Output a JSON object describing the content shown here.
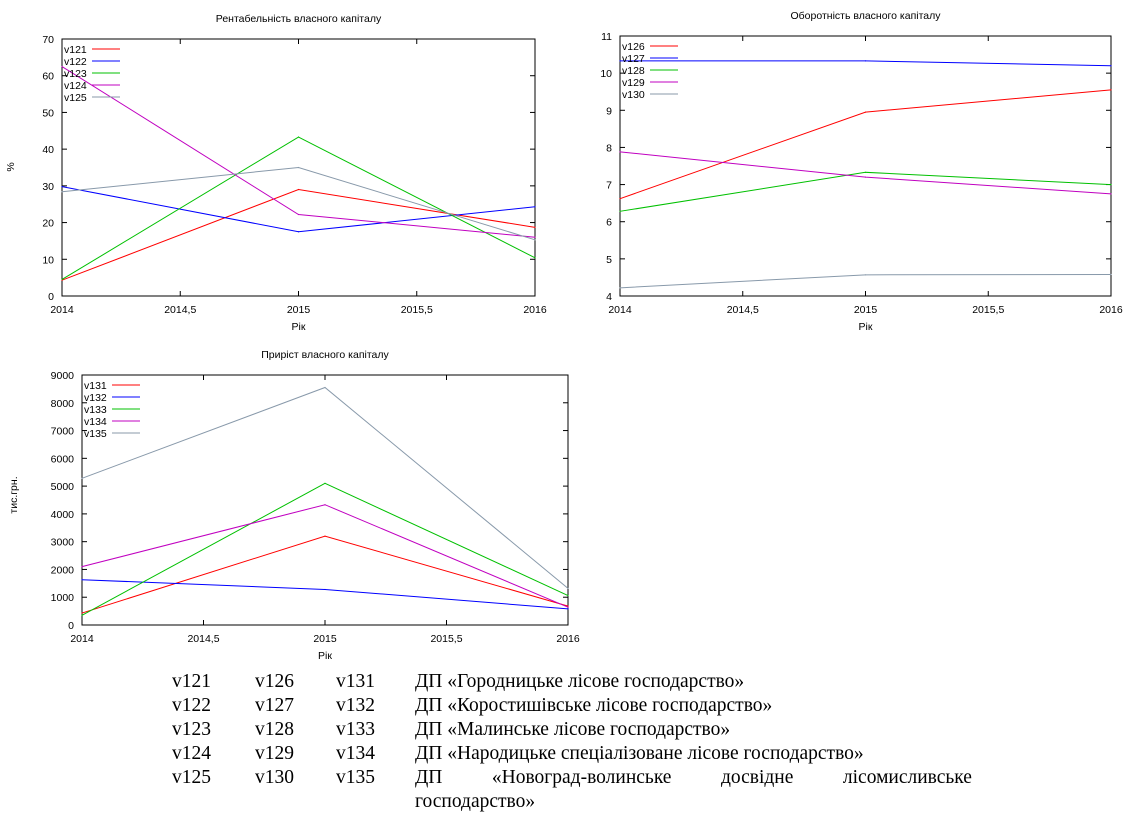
{
  "chart_data": [
    {
      "type": "line",
      "title": "Рентабельність власного капіталу",
      "xlabel": "Рік",
      "ylabel": "%",
      "x": [
        2014,
        2015,
        2016
      ],
      "xticks": [
        "2014",
        "2014,5",
        "2015",
        "2015,5",
        "2016"
      ],
      "yticks": [
        "0",
        "10",
        "20",
        "30",
        "40",
        "50",
        "60",
        "70"
      ],
      "xlim": [
        2014,
        2016
      ],
      "ylim": [
        0,
        70
      ],
      "legend_position": "top-left",
      "series": [
        {
          "name": "v121",
          "color": "#ff0000",
          "values": [
            4.3,
            29.0,
            18.7
          ]
        },
        {
          "name": "v122",
          "color": "#0000ff",
          "values": [
            29.8,
            17.5,
            24.3
          ]
        },
        {
          "name": "v123",
          "color": "#00c000",
          "values": [
            4.5,
            43.3,
            10.4
          ]
        },
        {
          "name": "v124",
          "color": "#c000c0",
          "values": [
            62.5,
            22.2,
            16.0
          ]
        },
        {
          "name": "v125",
          "color": "#8899aa",
          "values": [
            28.4,
            35.0,
            15.3
          ]
        }
      ]
    },
    {
      "type": "line",
      "title": "Оборотність власного капіталу",
      "xlabel": "Рік",
      "ylabel": "",
      "x": [
        2014,
        2015,
        2016
      ],
      "xticks": [
        "2014",
        "2014,5",
        "2015",
        "2015,5",
        "2016"
      ],
      "yticks": [
        "4",
        "5",
        "6",
        "7",
        "8",
        "9",
        "10",
        "11"
      ],
      "xlim": [
        2014,
        2016
      ],
      "ylim": [
        4,
        11
      ],
      "legend_position": "top-left",
      "series": [
        {
          "name": "v126",
          "color": "#ff0000",
          "values": [
            6.62,
            8.95,
            9.55
          ]
        },
        {
          "name": "v127",
          "color": "#0000ff",
          "values": [
            10.33,
            10.33,
            10.2
          ]
        },
        {
          "name": "v128",
          "color": "#00c000",
          "values": [
            6.28,
            7.33,
            7.0
          ]
        },
        {
          "name": "v129",
          "color": "#c000c0",
          "values": [
            7.88,
            7.2,
            6.75
          ]
        },
        {
          "name": "v130",
          "color": "#8899aa",
          "values": [
            4.22,
            4.57,
            4.58
          ]
        }
      ]
    },
    {
      "type": "line",
      "title": "Приріст власного капіталу",
      "xlabel": "Рік",
      "ylabel": "тис.грн.",
      "x": [
        2014,
        2015,
        2016
      ],
      "xticks": [
        "2014",
        "2014,5",
        "2015",
        "2015,5",
        "2016"
      ],
      "yticks": [
        "0",
        "1000",
        "2000",
        "3000",
        "4000",
        "5000",
        "6000",
        "7000",
        "8000",
        "9000"
      ],
      "xlim": [
        2014,
        2016
      ],
      "ylim": [
        0,
        9000
      ],
      "legend_position": "top-left",
      "series": [
        {
          "name": "v131",
          "color": "#ff0000",
          "values": [
            430,
            3200,
            680
          ]
        },
        {
          "name": "v132",
          "color": "#0000ff",
          "values": [
            1630,
            1280,
            580
          ]
        },
        {
          "name": "v133",
          "color": "#00c000",
          "values": [
            350,
            5100,
            1060
          ]
        },
        {
          "name": "v134",
          "color": "#c000c0",
          "values": [
            2100,
            4330,
            640
          ]
        },
        {
          "name": "v135",
          "color": "#8899aa",
          "values": [
            5280,
            8550,
            1320
          ]
        }
      ]
    }
  ],
  "legend_table": {
    "rows": [
      {
        "a": "v121",
        "b": "v126",
        "c": "v131",
        "org": "ДП «Городницьке лісове господарство»"
      },
      {
        "a": "v122",
        "b": "v127",
        "c": "v132",
        "org": "ДП «Коростишівське лісове господарство»"
      },
      {
        "a": "v123",
        "b": "v128",
        "c": "v133",
        "org": "ДП «Малинське лісове господарство»"
      },
      {
        "a": "v124",
        "b": "v129",
        "c": "v134",
        "org": "ДП «Народицьке спеціалізоване лісове господарство»"
      }
    ],
    "last_row": {
      "a": "v125",
      "b": "v130",
      "c": "v135",
      "org_words": [
        "ДП",
        "«Новоград-волинське",
        "досвідне",
        "лісомисливське"
      ],
      "org_continuation": "господарство»"
    }
  }
}
